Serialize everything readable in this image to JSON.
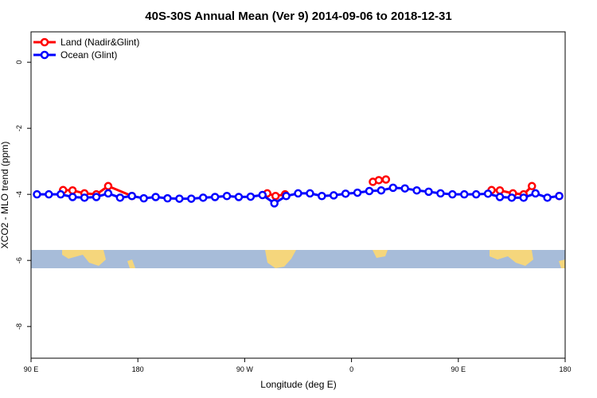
{
  "chart_data": {
    "type": "line",
    "title": "40S-30S Annual Mean (Ver 9)   2014-09-06 to 2018-12-31",
    "xlabel": "Longitude (deg E)",
    "ylabel": "XCO2 - MLO trend (ppm)",
    "xlim": [
      90,
      540
    ],
    "ylim": [
      -8.96,
      0.92
    ],
    "xticks": [
      {
        "value": 90,
        "label": "90 E"
      },
      180,
      {
        "value": 270,
        "label": "90 W"
      },
      {
        "value": 360,
        "label": "0"
      },
      {
        "value": 450,
        "label": "90 E"
      },
      {
        "value": 540,
        "label": "180"
      }
    ],
    "yticks": [
      0,
      -2,
      -4,
      -6,
      -8
    ],
    "legend": "top-left",
    "series": [
      {
        "name": "Land (Nadir&Glint)",
        "color": "#ff0000",
        "x": [
          117,
          125,
          135,
          145,
          155,
          175,
          230,
          289,
          296,
          304,
          340,
          378,
          383,
          389,
          430,
          478,
          485,
          496,
          505,
          512,
          525,
          535
        ],
        "values": [
          -3.87,
          -3.88,
          -3.97,
          -4.0,
          -3.75,
          -4.05,
          null,
          -3.97,
          -4.05,
          -4.0,
          null,
          -3.62,
          -3.57,
          -3.55,
          null,
          -3.87,
          -3.88,
          -3.97,
          -4.0,
          -3.75,
          null,
          -4.05
        ]
      },
      {
        "name": "Ocean (Glint)",
        "color": "#0000ff",
        "x": [
          95,
          105,
          115,
          125,
          135,
          145,
          155,
          165,
          175,
          185,
          195,
          205,
          215,
          225,
          235,
          245,
          255,
          265,
          275,
          285,
          295,
          305,
          315,
          325,
          335,
          345,
          355,
          365,
          375,
          385,
          395,
          405,
          415,
          425,
          435,
          445,
          455,
          465,
          475,
          485,
          495,
          505,
          515,
          525,
          535
        ],
        "values": [
          -4.0,
          -4.0,
          -4.0,
          -4.08,
          -4.1,
          -4.08,
          -3.97,
          -4.1,
          -4.05,
          -4.12,
          -4.08,
          -4.12,
          -4.13,
          -4.13,
          -4.1,
          -4.08,
          -4.05,
          -4.08,
          -4.07,
          -4.02,
          -4.27,
          -4.05,
          -3.97,
          -3.97,
          -4.05,
          -4.03,
          -3.98,
          -3.95,
          -3.9,
          -3.88,
          -3.8,
          -3.82,
          -3.88,
          -3.92,
          -3.97,
          -4.0,
          -4.0,
          -4.0,
          -3.98,
          -4.08,
          -4.1,
          -4.1,
          -3.97,
          -4.1,
          -4.05
        ]
      }
    ]
  }
}
